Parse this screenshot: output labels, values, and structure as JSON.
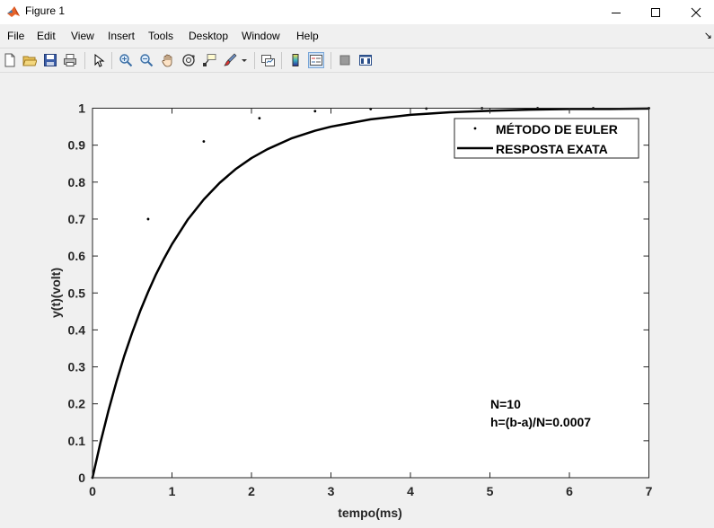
{
  "window": {
    "title": "Figure 1"
  },
  "menu": {
    "items": [
      "File",
      "Edit",
      "View",
      "Insert",
      "Tools",
      "Desktop",
      "Window",
      "Help"
    ]
  },
  "toolbar": {
    "buttons": [
      "new-figure-icon",
      "open-folder-icon",
      "save-icon",
      "print-icon",
      "select-arrow-icon",
      "zoom-in-icon",
      "zoom-out-icon",
      "pan-hand-icon",
      "rotate-3d-icon",
      "data-cursor-icon",
      "brush-icon",
      "link-plot-icon",
      "colorbar-icon",
      "legend-icon",
      "hide-plot-tools-icon",
      "show-plot-tools-icon"
    ]
  },
  "chart_data": {
    "type": "line",
    "xlabel": "tempo(ms)",
    "ylabel": "y(t)(volt)",
    "xlim": [
      0,
      7
    ],
    "ylim": [
      0,
      1
    ],
    "xticks": [
      "0",
      "1",
      "2",
      "3",
      "4",
      "5",
      "6",
      "7"
    ],
    "yticks": [
      "0",
      "0.1",
      "0.2",
      "0.3",
      "0.4",
      "0.5",
      "0.6",
      "0.7",
      "0.8",
      "0.9",
      "1"
    ],
    "grid": false,
    "legend_location": "top-right",
    "series": [
      {
        "name": "MÉTODO DE EULER",
        "style": "points",
        "color": "#000000",
        "x": [
          0,
          0.7,
          1.4,
          2.1,
          2.8,
          3.5,
          4.2,
          4.9,
          5.6,
          6.3,
          7.0
        ],
        "y": [
          0,
          0.7,
          0.91,
          0.973,
          0.992,
          0.998,
          0.999,
          1.0,
          1.0,
          1.0,
          1.0
        ]
      },
      {
        "name": "RESPOSTA EXATA",
        "style": "line",
        "color": "#000000",
        "x": [
          0,
          0.1,
          0.2,
          0.3,
          0.4,
          0.5,
          0.6,
          0.7,
          0.8,
          0.9,
          1.0,
          1.2,
          1.4,
          1.6,
          1.8,
          2.0,
          2.2,
          2.5,
          2.8,
          3.0,
          3.5,
          4.0,
          4.5,
          5.0,
          5.5,
          6.0,
          6.5,
          7.0
        ],
        "y": [
          0,
          0.095,
          0.181,
          0.259,
          0.33,
          0.393,
          0.451,
          0.503,
          0.551,
          0.593,
          0.632,
          0.699,
          0.753,
          0.798,
          0.835,
          0.865,
          0.889,
          0.918,
          0.939,
          0.95,
          0.97,
          0.982,
          0.989,
          0.993,
          0.996,
          0.998,
          0.998,
          0.999
        ]
      }
    ],
    "annotations": [
      "N=10",
      "h=(b-a)/N=0.0007"
    ]
  }
}
